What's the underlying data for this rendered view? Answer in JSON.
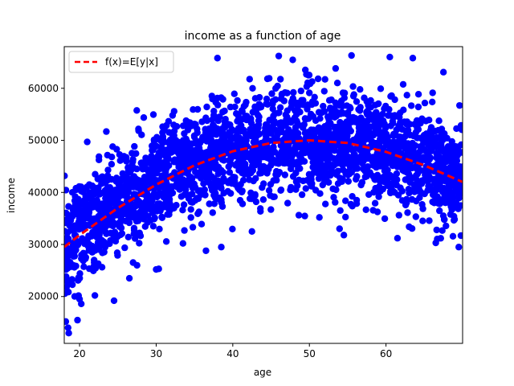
{
  "chart_data": {
    "type": "scatter",
    "title": "income as a function of age",
    "xlabel": "age",
    "ylabel": "income",
    "xlim": [
      18,
      70
    ],
    "ylim": [
      11000,
      68000
    ],
    "xticks": [
      20,
      30,
      40,
      50,
      60
    ],
    "yticks": [
      20000,
      30000,
      40000,
      50000,
      60000
    ],
    "grid": false,
    "legend": {
      "placement": "top-left"
    },
    "series": [
      {
        "type": "scatter",
        "color": "#0000ff",
        "band": {
          "ages": [
            18,
            20,
            25,
            30,
            35,
            40,
            45,
            50,
            55,
            60,
            65,
            70
          ],
          "mean": [
            29500,
            32500,
            38000,
            42000,
            45500,
            48000,
            49500,
            50000,
            49500,
            48000,
            45500,
            42000
          ],
          "spread": [
            5000,
            5000,
            5000,
            5000,
            5000,
            5000,
            5000,
            5000,
            5000,
            5000,
            5000,
            5000
          ]
        },
        "outliers": [
          {
            "x": 18.2,
            "y": 15200
          },
          {
            "x": 18.5,
            "y": 14000
          },
          {
            "x": 20,
            "y": 19500
          },
          {
            "x": 21,
            "y": 49700
          },
          {
            "x": 22,
            "y": 20200
          },
          {
            "x": 24.5,
            "y": 19200
          },
          {
            "x": 26.5,
            "y": 23500
          },
          {
            "x": 27.5,
            "y": 26000
          },
          {
            "x": 30,
            "y": 25200
          },
          {
            "x": 33.5,
            "y": 30200
          },
          {
            "x": 36.5,
            "y": 28800
          },
          {
            "x": 38,
            "y": 65800
          },
          {
            "x": 46,
            "y": 66200
          },
          {
            "x": 54.5,
            "y": 31800
          },
          {
            "x": 55.5,
            "y": 66300
          },
          {
            "x": 60.5,
            "y": 66000
          },
          {
            "x": 61.5,
            "y": 31200
          },
          {
            "x": 63.5,
            "y": 65800
          },
          {
            "x": 67.5,
            "y": 63100
          },
          {
            "x": 69.5,
            "y": 29500
          },
          {
            "x": 69.6,
            "y": 56700
          },
          {
            "x": 38.5,
            "y": 29500
          },
          {
            "x": 42.5,
            "y": 32500
          },
          {
            "x": 66.5,
            "y": 30300
          }
        ]
      },
      {
        "name": "f(x)=E[y|x]",
        "type": "line",
        "color": "#ff0000",
        "dashed": true,
        "x": [
          18,
          20,
          25,
          30,
          35,
          40,
          45,
          50,
          55,
          60,
          65,
          70
        ],
        "y": [
          29500,
          31800,
          37000,
          41500,
          45200,
          47900,
          49500,
          50000,
          49500,
          47800,
          45200,
          42000
        ]
      }
    ]
  }
}
